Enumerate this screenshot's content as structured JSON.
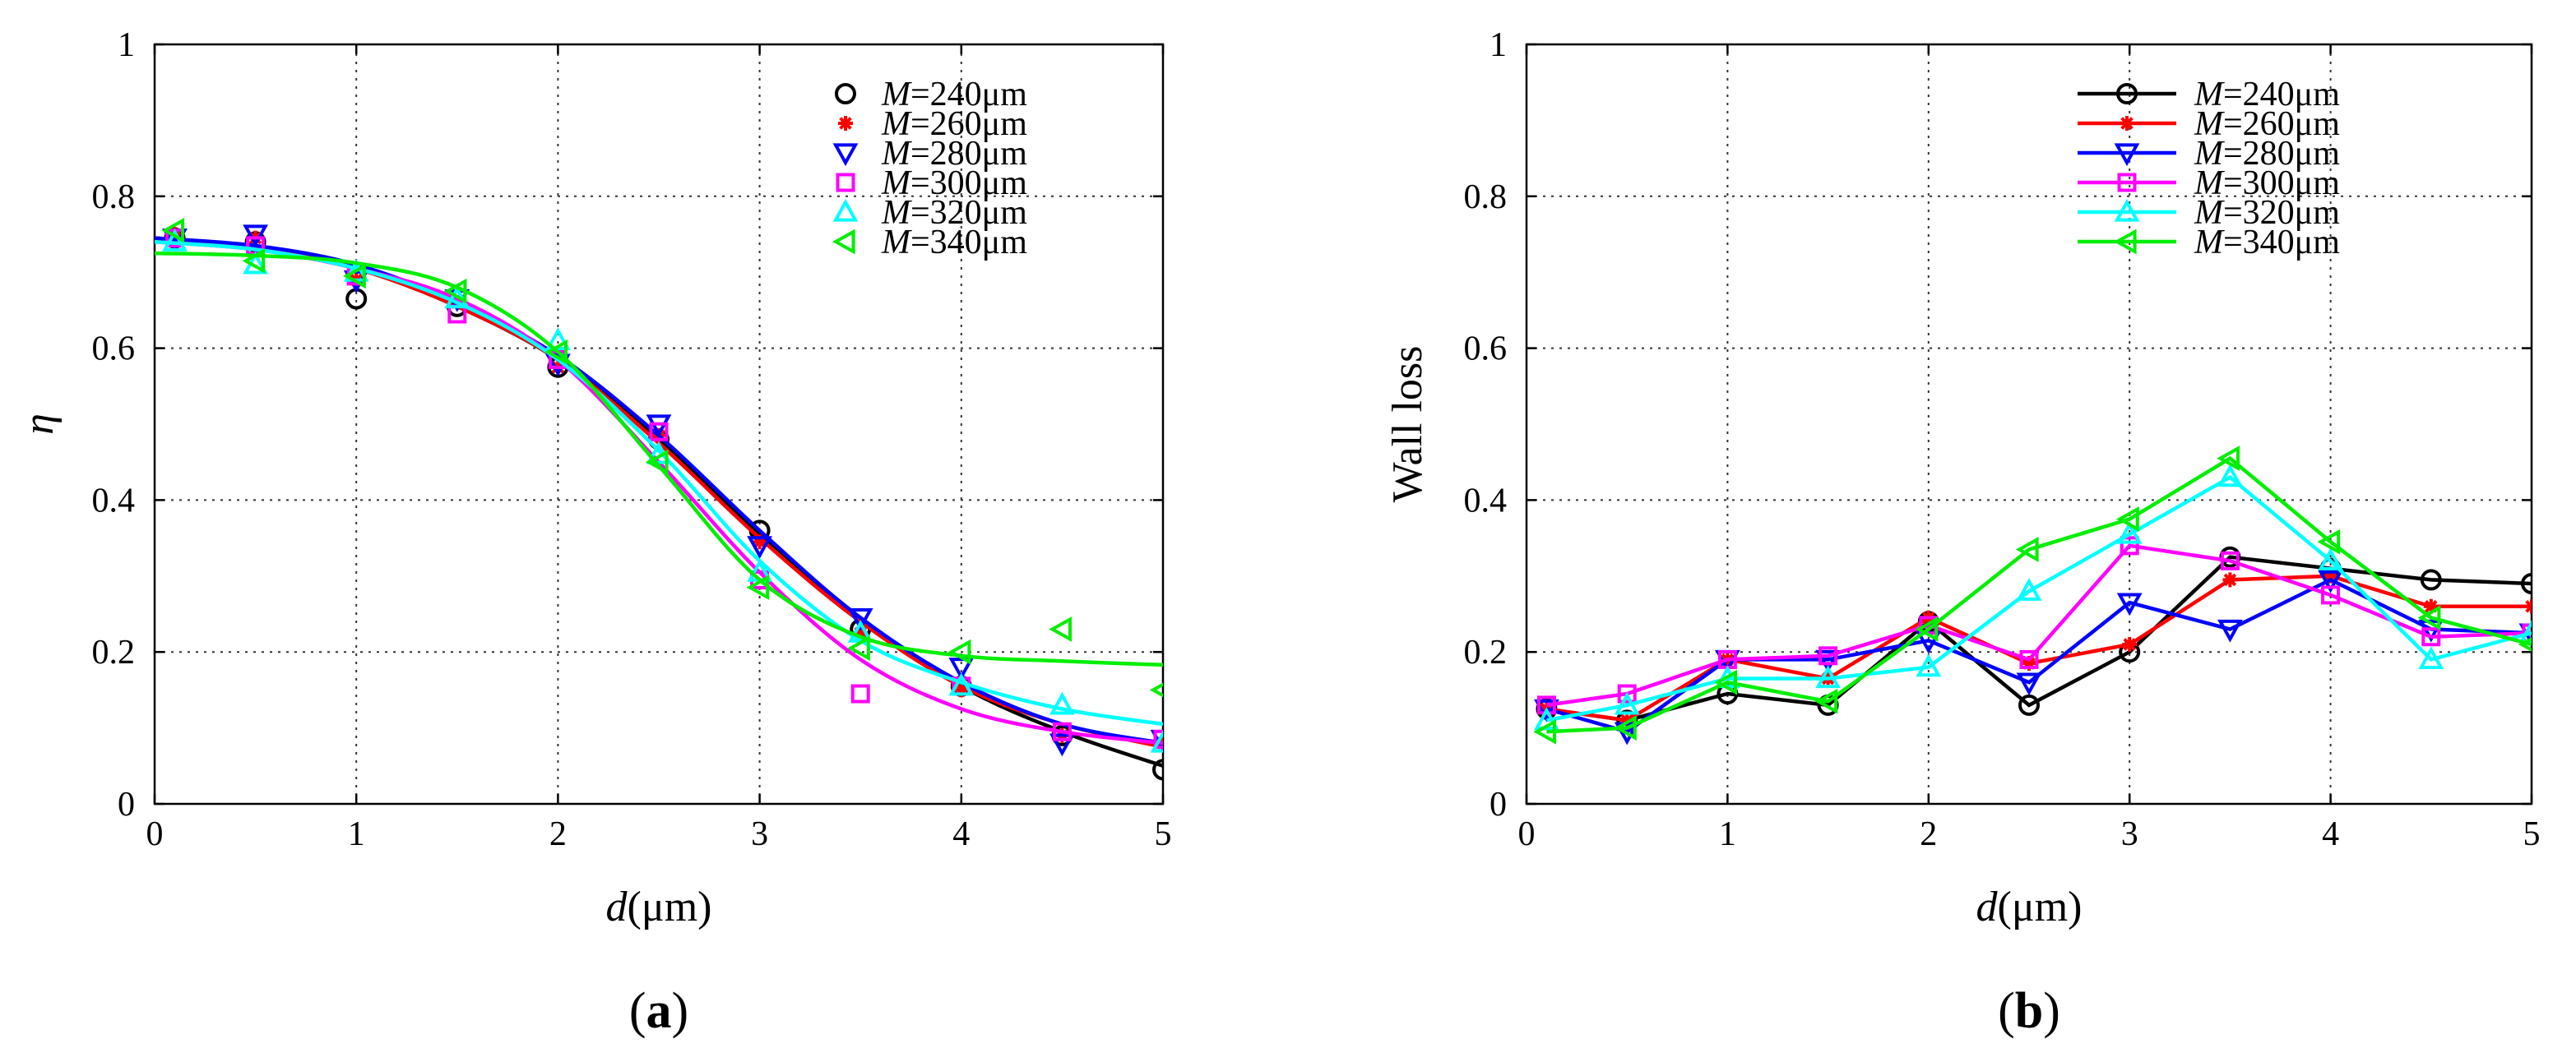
{
  "chart_data": [
    {
      "type": "scatter",
      "panel_label": "(a)",
      "panel_letter": "a",
      "ylabel": "η",
      "xlabel_italic": "d",
      "xlabel_unit": "(μm)",
      "xlim": [
        0,
        5
      ],
      "ylim": [
        0,
        1
      ],
      "xticks": [
        "0",
        "1",
        "2",
        "3",
        "4",
        "5"
      ],
      "yticks": [
        "0",
        "0.2",
        "0.4",
        "0.6",
        "0.8",
        "1"
      ],
      "grid": true,
      "legend_position": "top-right",
      "legend_var": "M",
      "series": [
        {
          "name": "M=240μm",
          "label_value": "=240μm",
          "color": "#000000",
          "marker": "circle",
          "x": [
            0.1,
            0.5,
            1,
            1.5,
            2,
            2.5,
            3,
            3.5,
            4,
            4.5,
            5
          ],
          "y": [
            0.745,
            0.74,
            0.665,
            0.655,
            0.575,
            0.48,
            0.36,
            0.23,
            0.155,
            0.09,
            0.045
          ],
          "fit_x": [
            0,
            0.5,
            1,
            1.5,
            2,
            2.5,
            3,
            3.5,
            4,
            4.5,
            5
          ],
          "fit_y": [
            0.745,
            0.733,
            0.705,
            0.655,
            0.585,
            0.48,
            0.355,
            0.245,
            0.155,
            0.095,
            0.05
          ]
        },
        {
          "name": "M=260μm",
          "label_value": "=260μm",
          "color": "#ff0000",
          "marker": "star",
          "x": [
            0.1,
            0.5,
            1,
            1.5,
            2,
            2.5,
            3,
            3.5,
            4,
            4.5,
            5
          ],
          "y": [
            0.75,
            0.745,
            0.69,
            0.66,
            0.575,
            0.485,
            0.345,
            0.225,
            0.15,
            0.09,
            0.08
          ],
          "fit_x": [
            0,
            0.5,
            1,
            1.5,
            2,
            2.5,
            3,
            3.5,
            4,
            4.5,
            5
          ],
          "fit_y": [
            0.745,
            0.733,
            0.705,
            0.655,
            0.585,
            0.475,
            0.35,
            0.24,
            0.155,
            0.105,
            0.075
          ]
        },
        {
          "name": "M=280μm",
          "label_value": "=280μm",
          "color": "#0000ff",
          "marker": "triangle-down",
          "x": [
            0.1,
            0.5,
            1,
            1.5,
            2,
            2.5,
            3,
            3.5,
            4,
            4.5,
            5
          ],
          "y": [
            0.745,
            0.75,
            0.69,
            0.665,
            0.58,
            0.5,
            0.34,
            0.245,
            0.18,
            0.08,
            0.085
          ],
          "fit_x": [
            0,
            0.5,
            1,
            1.5,
            2,
            2.5,
            3,
            3.5,
            4,
            4.5,
            5
          ],
          "fit_y": [
            0.745,
            0.735,
            0.71,
            0.66,
            0.59,
            0.485,
            0.36,
            0.245,
            0.16,
            0.105,
            0.08
          ]
        },
        {
          "name": "M=300μm",
          "label_value": "=300μm",
          "color": "#ff00ff",
          "marker": "square",
          "x": [
            0.1,
            0.5,
            1,
            1.5,
            2,
            2.5,
            3,
            3.5,
            4,
            4.5,
            5
          ],
          "y": [
            0.745,
            0.735,
            0.695,
            0.645,
            0.585,
            0.49,
            0.295,
            0.145,
            0.155,
            0.095,
            0.085
          ],
          "fit_x": [
            0,
            0.5,
            1,
            1.5,
            2,
            2.5,
            3,
            3.5,
            4,
            4.5,
            5
          ],
          "fit_y": [
            0.74,
            0.73,
            0.705,
            0.665,
            0.585,
            0.45,
            0.305,
            0.19,
            0.125,
            0.095,
            0.08
          ]
        },
        {
          "name": "M=320μm",
          "label_value": "=320μm",
          "color": "#00ffff",
          "marker": "triangle-up",
          "x": [
            0.1,
            0.5,
            1,
            1.5,
            2,
            2.5,
            3,
            3.5,
            4,
            4.5,
            5
          ],
          "y": [
            0.74,
            0.71,
            0.7,
            0.665,
            0.61,
            0.46,
            0.305,
            0.225,
            0.155,
            0.13,
            0.08
          ],
          "fit_x": [
            0,
            0.5,
            1,
            1.5,
            2,
            2.5,
            3,
            3.5,
            4,
            4.5,
            5
          ],
          "fit_y": [
            0.74,
            0.73,
            0.705,
            0.66,
            0.585,
            0.465,
            0.32,
            0.215,
            0.16,
            0.125,
            0.105
          ]
        },
        {
          "name": "M=340μm",
          "label_value": "=340μm",
          "color": "#00ee00",
          "marker": "triangle-left",
          "x": [
            0.1,
            0.5,
            1,
            1.5,
            2,
            2.5,
            3,
            3.5,
            4,
            4.5,
            5
          ],
          "y": [
            0.755,
            0.715,
            0.695,
            0.675,
            0.595,
            0.45,
            0.285,
            0.205,
            0.2,
            0.23,
            0.15
          ],
          "fit_x": [
            0,
            0.5,
            1,
            1.5,
            2,
            2.5,
            3,
            3.5,
            4,
            4.5,
            5
          ],
          "fit_y": [
            0.725,
            0.722,
            0.712,
            0.68,
            0.595,
            0.445,
            0.295,
            0.22,
            0.195,
            0.188,
            0.183
          ]
        }
      ]
    },
    {
      "type": "line",
      "panel_label": "(b)",
      "panel_letter": "b",
      "ylabel": "Wall loss",
      "xlabel_italic": "d",
      "xlabel_unit": "(μm)",
      "xlim": [
        0,
        5
      ],
      "ylim": [
        0,
        1
      ],
      "xticks": [
        "0",
        "1",
        "2",
        "3",
        "4",
        "5"
      ],
      "yticks": [
        "0",
        "0.2",
        "0.4",
        "0.6",
        "0.8",
        "1"
      ],
      "grid": true,
      "legend_position": "top-right",
      "legend_var": "M",
      "series": [
        {
          "name": "M=240μm",
          "label_value": "=240μm",
          "color": "#000000",
          "marker": "circle",
          "x": [
            0.1,
            0.5,
            1,
            1.5,
            2,
            2.5,
            3,
            3.5,
            4,
            4.5,
            5
          ],
          "y": [
            0.125,
            0.11,
            0.145,
            0.13,
            0.24,
            0.13,
            0.2,
            0.325,
            0.31,
            0.295,
            0.29
          ]
        },
        {
          "name": "M=260μm",
          "label_value": "=260μm",
          "color": "#ff0000",
          "marker": "star",
          "x": [
            0.1,
            0.5,
            1,
            1.5,
            2,
            2.5,
            3,
            3.5,
            4,
            4.5,
            5
          ],
          "y": [
            0.125,
            0.11,
            0.19,
            0.165,
            0.245,
            0.185,
            0.21,
            0.295,
            0.3,
            0.26,
            0.26
          ]
        },
        {
          "name": "M=280μm",
          "label_value": "=280μm",
          "color": "#0000ff",
          "marker": "triangle-down",
          "x": [
            0.1,
            0.5,
            1,
            1.5,
            2,
            2.5,
            3,
            3.5,
            4,
            4.5,
            5
          ],
          "y": [
            0.125,
            0.095,
            0.19,
            0.19,
            0.215,
            0.16,
            0.265,
            0.23,
            0.295,
            0.23,
            0.225
          ]
        },
        {
          "name": "M=300μm",
          "label_value": "=300μm",
          "color": "#ff00ff",
          "marker": "square",
          "x": [
            0.1,
            0.5,
            1,
            1.5,
            2,
            2.5,
            3,
            3.5,
            4,
            4.5,
            5
          ],
          "y": [
            0.13,
            0.145,
            0.19,
            0.195,
            0.235,
            0.19,
            0.34,
            0.32,
            0.275,
            0.22,
            0.225
          ]
        },
        {
          "name": "M=320μm",
          "label_value": "=320μm",
          "color": "#00ffff",
          "marker": "triangle-up",
          "x": [
            0.1,
            0.5,
            1,
            1.5,
            2,
            2.5,
            3,
            3.5,
            4,
            4.5,
            5
          ],
          "y": [
            0.11,
            0.13,
            0.165,
            0.165,
            0.18,
            0.28,
            0.355,
            0.43,
            0.32,
            0.19,
            0.225
          ]
        },
        {
          "name": "M=340μm",
          "label_value": "=340μm",
          "color": "#00ee00",
          "marker": "triangle-left",
          "x": [
            0.1,
            0.5,
            1,
            1.5,
            2,
            2.5,
            3,
            3.5,
            4,
            4.5,
            5
          ],
          "y": [
            0.095,
            0.1,
            0.16,
            0.135,
            0.23,
            0.335,
            0.375,
            0.455,
            0.345,
            0.245,
            0.21
          ]
        }
      ]
    }
  ]
}
